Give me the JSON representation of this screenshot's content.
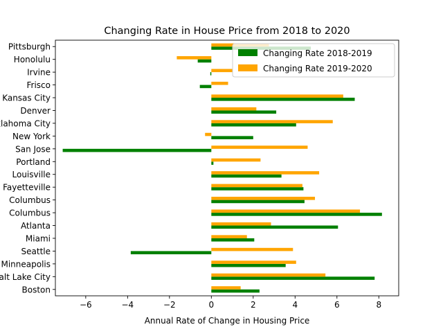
{
  "chart_data": {
    "type": "bar",
    "orientation": "horizontal",
    "title": "Changing Rate in House Price from 2018 to 2020",
    "xlabel": "Annual Rate of Change in Housing Price",
    "ylabel": "",
    "xlim": [
      -7.45,
      8.95
    ],
    "xticks": [
      -6,
      -4,
      -2,
      0,
      2,
      4,
      6,
      8
    ],
    "xtick_labels": [
      "−6",
      "−4",
      "−2",
      "0",
      "2",
      "4",
      "6",
      "8"
    ],
    "grid": false,
    "legend_position": "upper right",
    "categories": [
      "Boston",
      "Salt Lake City",
      "Minneapolis",
      "Seattle",
      "Miami",
      "Atlanta",
      "Columbus",
      "Columbus",
      "Fayetteville",
      "Louisville",
      "Portland",
      "San Jose",
      "New York",
      "Oklahoma City",
      "Denver",
      "Kansas City",
      "Frisco",
      "Irvine",
      "Honolulu",
      "Pittsburgh"
    ],
    "series": [
      {
        "name": "Changing Rate 2018-2019",
        "color": "#008000",
        "values": [
          2.3,
          7.8,
          3.55,
          -3.85,
          2.05,
          6.05,
          8.15,
          4.45,
          4.4,
          3.35,
          0.1,
          -7.1,
          2.0,
          4.05,
          3.1,
          6.85,
          -0.55,
          -0.05,
          -0.65,
          4.75
        ]
      },
      {
        "name": "Changing Rate 2019-2020",
        "color": "#FFA500",
        "values": [
          1.4,
          5.45,
          4.05,
          3.9,
          1.7,
          2.85,
          7.1,
          4.95,
          4.35,
          5.15,
          2.35,
          4.6,
          -0.3,
          5.8,
          2.15,
          6.3,
          0.8,
          1.0,
          -1.65,
          2.75
        ]
      }
    ]
  }
}
